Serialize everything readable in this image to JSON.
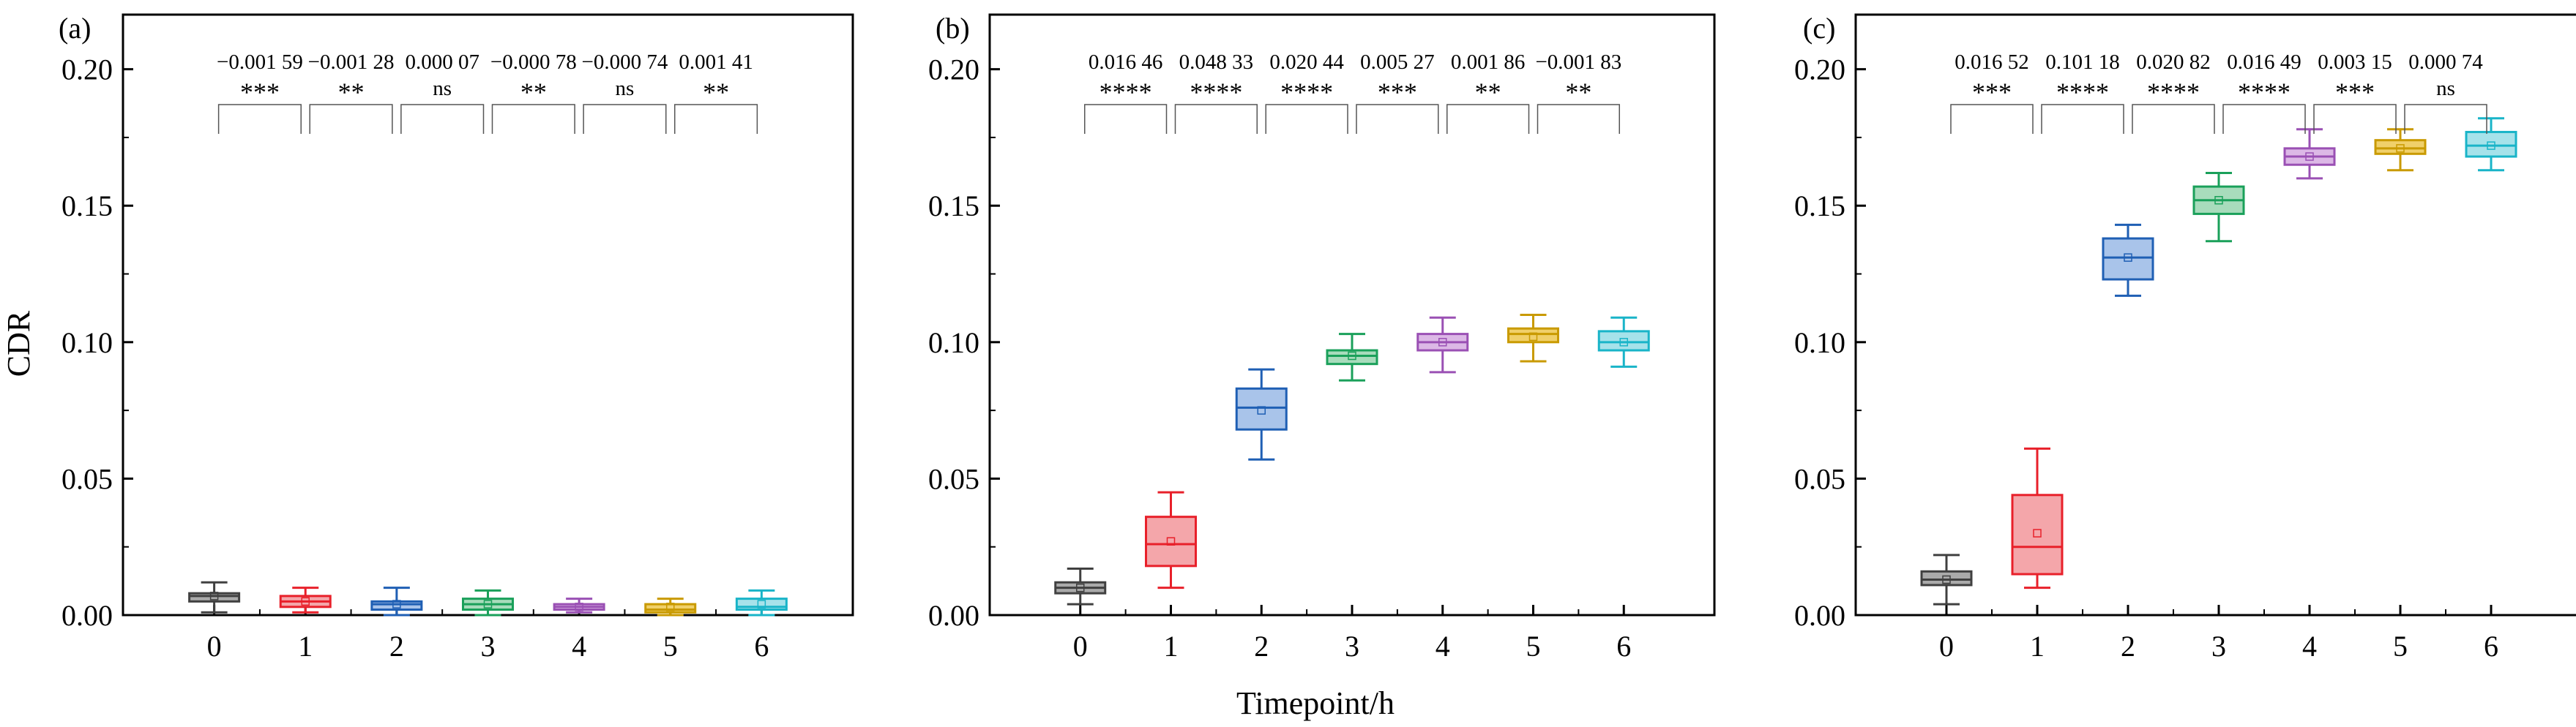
{
  "figure": {
    "y_axis_title": "CDR",
    "x_axis_title": "Timepoint/h"
  },
  "chart_data": [
    {
      "type": "box",
      "panel_label": "(a)",
      "categories": [
        "0",
        "1",
        "2",
        "3",
        "4",
        "5",
        "6"
      ],
      "ylim": [
        0,
        0.22
      ],
      "yticks": [
        0.0,
        0.05,
        0.1,
        0.15,
        0.2
      ],
      "ytick_labels": [
        "0.00",
        "0.05",
        "0.10",
        "0.15",
        "0.20"
      ],
      "ylabel": "CDR",
      "xlabel": "",
      "grid": false,
      "boxes": [
        {
          "timepoint": 0,
          "whisker_low": 0.001,
          "q1": 0.005,
          "median": 0.007,
          "q3": 0.008,
          "whisker_high": 0.012,
          "mean": 0.007,
          "color": "#404040",
          "fill": "#aaaaaa"
        },
        {
          "timepoint": 1,
          "whisker_low": 0.001,
          "q1": 0.003,
          "median": 0.005,
          "q3": 0.007,
          "whisker_high": 0.01,
          "mean": 0.005,
          "color": "#e8202a",
          "fill": "#f4a6aa"
        },
        {
          "timepoint": 2,
          "whisker_low": 0.0,
          "q1": 0.002,
          "median": 0.004,
          "q3": 0.005,
          "whisker_high": 0.01,
          "mean": 0.004,
          "color": "#1f5fb4",
          "fill": "#a9c4ea"
        },
        {
          "timepoint": 3,
          "whisker_low": 0.0,
          "q1": 0.002,
          "median": 0.004,
          "q3": 0.006,
          "whisker_high": 0.009,
          "mean": 0.004,
          "color": "#1aa05a",
          "fill": "#a8dcbc"
        },
        {
          "timepoint": 4,
          "whisker_low": 0.001,
          "q1": 0.002,
          "median": 0.003,
          "q3": 0.004,
          "whisker_high": 0.006,
          "mean": 0.003,
          "color": "#9a50b4",
          "fill": "#dcb8e6"
        },
        {
          "timepoint": 5,
          "whisker_low": 0.0,
          "q1": 0.001,
          "median": 0.002,
          "q3": 0.004,
          "whisker_high": 0.006,
          "mean": 0.003,
          "color": "#c99a00",
          "fill": "#f0d06a"
        },
        {
          "timepoint": 6,
          "whisker_low": 0.0,
          "q1": 0.002,
          "median": 0.003,
          "q3": 0.006,
          "whisker_high": 0.009,
          "mean": 0.004,
          "color": "#19b4c8",
          "fill": "#a6e2ea"
        }
      ],
      "comparisons": [
        {
          "from": 0,
          "to": 1,
          "difference": "−0.001 59",
          "significance": "***"
        },
        {
          "from": 1,
          "to": 2,
          "difference": "−0.001 28",
          "significance": "**"
        },
        {
          "from": 2,
          "to": 3,
          "difference": "0.000 07",
          "significance": "ns"
        },
        {
          "from": 3,
          "to": 4,
          "difference": "−0.000 78",
          "significance": "**"
        },
        {
          "from": 4,
          "to": 5,
          "difference": "−0.000 74",
          "significance": "ns"
        },
        {
          "from": 5,
          "to": 6,
          "difference": "0.001 41",
          "significance": "**"
        }
      ]
    },
    {
      "type": "box",
      "panel_label": "(b)",
      "categories": [
        "0",
        "1",
        "2",
        "3",
        "4",
        "5",
        "6"
      ],
      "ylim": [
        0,
        0.22
      ],
      "yticks": [
        0.0,
        0.05,
        0.1,
        0.15,
        0.2
      ],
      "ytick_labels": [
        "0.00",
        "0.05",
        "0.10",
        "0.15",
        "0.20"
      ],
      "ylabel": "",
      "xlabel": "Timepoint/h",
      "grid": false,
      "boxes": [
        {
          "timepoint": 0,
          "whisker_low": 0.004,
          "q1": 0.008,
          "median": 0.01,
          "q3": 0.012,
          "whisker_high": 0.017,
          "mean": 0.01,
          "color": "#404040",
          "fill": "#aaaaaa"
        },
        {
          "timepoint": 1,
          "whisker_low": 0.01,
          "q1": 0.018,
          "median": 0.026,
          "q3": 0.036,
          "whisker_high": 0.045,
          "mean": 0.027,
          "color": "#e8202a",
          "fill": "#f4a6aa"
        },
        {
          "timepoint": 2,
          "whisker_low": 0.057,
          "q1": 0.068,
          "median": 0.076,
          "q3": 0.083,
          "whisker_high": 0.09,
          "mean": 0.075,
          "color": "#1f5fb4",
          "fill": "#a9c4ea"
        },
        {
          "timepoint": 3,
          "whisker_low": 0.086,
          "q1": 0.092,
          "median": 0.095,
          "q3": 0.097,
          "whisker_high": 0.103,
          "mean": 0.095,
          "color": "#1aa05a",
          "fill": "#a8dcbc"
        },
        {
          "timepoint": 4,
          "whisker_low": 0.089,
          "q1": 0.097,
          "median": 0.1,
          "q3": 0.103,
          "whisker_high": 0.109,
          "mean": 0.1,
          "color": "#9a50b4",
          "fill": "#dcb8e6"
        },
        {
          "timepoint": 5,
          "whisker_low": 0.093,
          "q1": 0.1,
          "median": 0.103,
          "q3": 0.105,
          "whisker_high": 0.11,
          "mean": 0.102,
          "color": "#c99a00",
          "fill": "#f0d06a"
        },
        {
          "timepoint": 6,
          "whisker_low": 0.091,
          "q1": 0.097,
          "median": 0.1,
          "q3": 0.104,
          "whisker_high": 0.109,
          "mean": 0.1,
          "color": "#19b4c8",
          "fill": "#a6e2ea"
        }
      ],
      "comparisons": [
        {
          "from": 0,
          "to": 1,
          "difference": "0.016 46",
          "significance": "****"
        },
        {
          "from": 1,
          "to": 2,
          "difference": "0.048 33",
          "significance": "****"
        },
        {
          "from": 2,
          "to": 3,
          "difference": "0.020 44",
          "significance": "****"
        },
        {
          "from": 3,
          "to": 4,
          "difference": "0.005 27",
          "significance": "***"
        },
        {
          "from": 4,
          "to": 5,
          "difference": "0.001 86",
          "significance": "**"
        },
        {
          "from": 5,
          "to": 6,
          "difference": "−0.001 83",
          "significance": "**"
        }
      ]
    },
    {
      "type": "box",
      "panel_label": "(c)",
      "categories": [
        "0",
        "1",
        "2",
        "3",
        "4",
        "5",
        "6"
      ],
      "ylim": [
        0,
        0.22
      ],
      "yticks": [
        0.0,
        0.05,
        0.1,
        0.15,
        0.2
      ],
      "ytick_labels": [
        "0.00",
        "0.05",
        "0.10",
        "0.15",
        "0.20"
      ],
      "ylabel": "",
      "xlabel": "",
      "grid": false,
      "boxes": [
        {
          "timepoint": 0,
          "whisker_low": 0.004,
          "q1": 0.011,
          "median": 0.013,
          "q3": 0.016,
          "whisker_high": 0.022,
          "mean": 0.013,
          "color": "#404040",
          "fill": "#aaaaaa"
        },
        {
          "timepoint": 1,
          "whisker_low": 0.01,
          "q1": 0.015,
          "median": 0.025,
          "q3": 0.044,
          "whisker_high": 0.061,
          "mean": 0.03,
          "color": "#e8202a",
          "fill": "#f4a6aa"
        },
        {
          "timepoint": 2,
          "whisker_low": 0.117,
          "q1": 0.123,
          "median": 0.131,
          "q3": 0.138,
          "whisker_high": 0.143,
          "mean": 0.131,
          "color": "#1f5fb4",
          "fill": "#a9c4ea"
        },
        {
          "timepoint": 3,
          "whisker_low": 0.137,
          "q1": 0.147,
          "median": 0.152,
          "q3": 0.157,
          "whisker_high": 0.162,
          "mean": 0.152,
          "color": "#1aa05a",
          "fill": "#a8dcbc"
        },
        {
          "timepoint": 4,
          "whisker_low": 0.16,
          "q1": 0.165,
          "median": 0.168,
          "q3": 0.171,
          "whisker_high": 0.178,
          "mean": 0.168,
          "color": "#9a50b4",
          "fill": "#dcb8e6"
        },
        {
          "timepoint": 5,
          "whisker_low": 0.163,
          "q1": 0.169,
          "median": 0.171,
          "q3": 0.174,
          "whisker_high": 0.178,
          "mean": 0.171,
          "color": "#c99a00",
          "fill": "#f0d06a"
        },
        {
          "timepoint": 6,
          "whisker_low": 0.163,
          "q1": 0.168,
          "median": 0.172,
          "q3": 0.177,
          "whisker_high": 0.182,
          "mean": 0.172,
          "color": "#19b4c8",
          "fill": "#a6e2ea"
        }
      ],
      "comparisons": [
        {
          "from": 0,
          "to": 1,
          "difference": "0.016 52",
          "significance": "***"
        },
        {
          "from": 1,
          "to": 2,
          "difference": "0.101 18",
          "significance": "****"
        },
        {
          "from": 2,
          "to": 3,
          "difference": "0.020 82",
          "significance": "****"
        },
        {
          "from": 3,
          "to": 4,
          "difference": "0.016 49",
          "significance": "****"
        },
        {
          "from": 4,
          "to": 5,
          "difference": "0.003 15",
          "significance": "***"
        },
        {
          "from": 5,
          "to": 6,
          "difference": "0.000 74",
          "significance": "ns"
        }
      ]
    }
  ]
}
